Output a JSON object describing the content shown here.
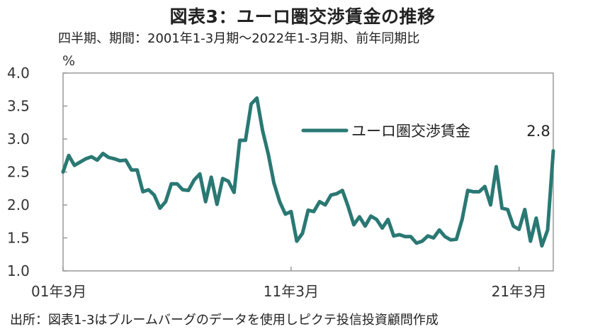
{
  "chart_data": {
    "type": "line",
    "title": "図表3：ユーロ圏交渉賃金の推移",
    "subtitle": "四半期、期間：2001年1-3月期～2022年1-3月期、前年同期比",
    "source": "出所：図表1-3はブルームバーグのデータを使用しピクテ投信投資顧問作成",
    "ylabel": "%",
    "ylim": [
      1.0,
      4.0
    ],
    "y_ticks": [
      "4.0",
      "3.5",
      "3.0",
      "2.5",
      "2.0",
      "1.5",
      "1.0"
    ],
    "x_tick_labels": [
      "01年3月",
      "11年3月",
      "21年3月"
    ],
    "grid": false,
    "legend_position": "right",
    "line_color": "#2a7873",
    "end_label": "2.8",
    "series": [
      {
        "name": "ユーロ圏交渉賃金",
        "values": [
          2.5,
          2.75,
          2.6,
          2.65,
          2.7,
          2.73,
          2.68,
          2.78,
          2.72,
          2.7,
          2.67,
          2.68,
          2.53,
          2.53,
          2.2,
          2.23,
          2.15,
          1.95,
          2.05,
          2.32,
          2.32,
          2.23,
          2.22,
          2.38,
          2.47,
          2.05,
          2.42,
          2.01,
          2.4,
          2.36,
          2.19,
          2.98,
          2.98,
          3.53,
          3.62,
          3.13,
          2.77,
          2.33,
          2.05,
          1.86,
          1.9,
          1.45,
          1.57,
          1.92,
          1.9,
          2.05,
          2.0,
          2.15,
          2.17,
          2.22,
          1.98,
          1.7,
          1.82,
          1.68,
          1.83,
          1.78,
          1.65,
          1.78,
          1.53,
          1.55,
          1.52,
          1.52,
          1.42,
          1.45,
          1.53,
          1.5,
          1.62,
          1.52,
          1.47,
          1.48,
          1.78,
          2.22,
          2.2,
          2.2,
          2.28,
          2.0,
          2.58,
          1.95,
          1.93,
          1.68,
          1.63,
          1.93,
          1.45,
          1.8,
          1.38,
          1.62,
          2.82
        ]
      }
    ]
  }
}
